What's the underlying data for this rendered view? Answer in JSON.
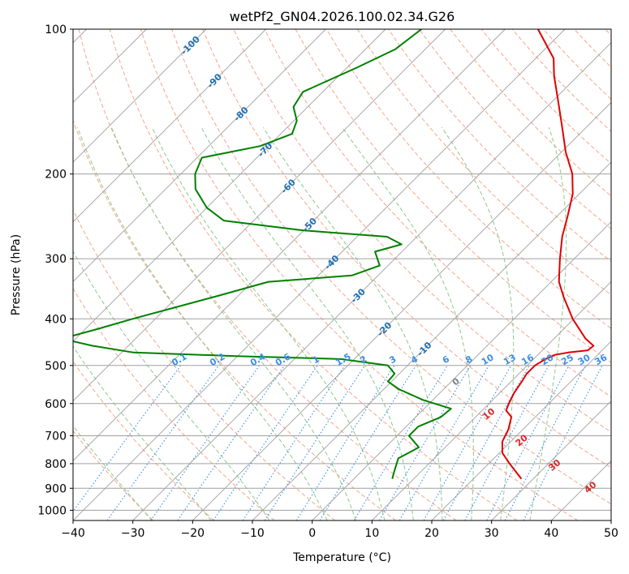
{
  "chart_data": {
    "type": "line",
    "subtype": "skew-t log-p diagram",
    "title": "wetPf2_GN04.2026.100.02.34.G26",
    "xlabel": "Temperature (°C)",
    "ylabel": "Pressure (hPa)",
    "xlim": [
      -40,
      50
    ],
    "ylim": [
      1050,
      100
    ],
    "yscale": "log",
    "grid": true,
    "x_ticks": [
      -40,
      -30,
      -20,
      -10,
      0,
      10,
      20,
      30,
      40,
      50
    ],
    "y_ticks": [
      100,
      200,
      300,
      400,
      500,
      600,
      700,
      800,
      900,
      1000
    ],
    "x_tick_labels": [
      "−40",
      "−30",
      "−20",
      "−10",
      "0",
      "10",
      "20",
      "30",
      "40",
      "50"
    ],
    "y_tick_labels": [
      "100",
      "200",
      "300",
      "400",
      "500",
      "600",
      "700",
      "800",
      "900",
      "1000"
    ],
    "series": [
      {
        "color": "#e00000",
        "points": [
          [
            860,
            28.0
          ],
          [
            800,
            23.5
          ],
          [
            760,
            20.5
          ],
          [
            720,
            18.6
          ],
          [
            680,
            17.6
          ],
          [
            640,
            16.0
          ],
          [
            620,
            14.0
          ],
          [
            600,
            13.3
          ],
          [
            570,
            12.4
          ],
          [
            540,
            11.8
          ],
          [
            520,
            11.3
          ],
          [
            500,
            11.3
          ],
          [
            485,
            12.0
          ],
          [
            475,
            12.9
          ],
          [
            470,
            14.7
          ],
          [
            465,
            17.6
          ],
          [
            455,
            17.8
          ],
          [
            440,
            15.3
          ],
          [
            400,
            9.8
          ],
          [
            360,
            4.6
          ],
          [
            335,
            1.3
          ],
          [
            300,
            -2.4
          ],
          [
            270,
            -5.7
          ],
          [
            245,
            -8.2
          ],
          [
            220,
            -11.1
          ],
          [
            200,
            -14.5
          ],
          [
            180,
            -19.3
          ],
          [
            160,
            -24.0
          ],
          [
            140,
            -29.4
          ],
          [
            125,
            -34.0
          ],
          [
            115,
            -37.0
          ],
          [
            100,
            -44.5
          ]
        ]
      },
      {
        "color": "#008000",
        "points": [
          [
            860,
            6.4
          ],
          [
            830,
            5.5
          ],
          [
            780,
            4.0
          ],
          [
            740,
            5.6
          ],
          [
            700,
            2.0
          ],
          [
            670,
            2.0
          ],
          [
            640,
            4.2
          ],
          [
            615,
            4.5
          ],
          [
            590,
            -1.6
          ],
          [
            560,
            -7.5
          ],
          [
            540,
            -10.6
          ],
          [
            520,
            -10.8
          ],
          [
            500,
            -13.3
          ],
          [
            485,
            -22.2
          ],
          [
            478,
            -40.3
          ],
          [
            470,
            -58.0
          ],
          [
            455,
            -66.0
          ],
          [
            440,
            -72.3
          ],
          [
            420,
            -68.0
          ],
          [
            400,
            -63.8
          ],
          [
            360,
            -53.8
          ],
          [
            335,
            -47.3
          ],
          [
            325,
            -34.4
          ],
          [
            310,
            -31.4
          ],
          [
            290,
            -34.5
          ],
          [
            280,
            -31.3
          ],
          [
            270,
            -35.0
          ],
          [
            262,
            -50.0
          ],
          [
            250,
            -65.0
          ],
          [
            235,
            -70.0
          ],
          [
            215,
            -75.0
          ],
          [
            200,
            -77.6
          ],
          [
            185,
            -79.2
          ],
          [
            175,
            -71.4
          ],
          [
            165,
            -68.1
          ],
          [
            155,
            -69.5
          ],
          [
            145,
            -72.4
          ],
          [
            135,
            -73.3
          ],
          [
            120,
            -68.3
          ],
          [
            110,
            -65.0
          ],
          [
            100,
            -64.0
          ]
        ]
      }
    ],
    "dry_adiabats": [
      -30,
      -20,
      -10,
      0,
      10,
      20,
      30,
      40,
      50,
      60,
      70,
      80,
      90,
      100,
      110,
      120,
      130,
      140,
      150,
      160,
      170,
      180,
      190,
      200
    ],
    "moist_adiabats": [
      -30,
      -20,
      -10,
      0,
      5,
      10,
      15,
      20,
      25,
      30,
      35
    ],
    "mixing_ratio_lines": [
      "0.1",
      "0.2",
      "0.4",
      "0.6",
      "1",
      "1.5",
      "2",
      "3",
      "4",
      "6",
      "8",
      "10",
      "13",
      "16",
      "20",
      "25",
      "30",
      "36"
    ],
    "isotherm_labels": [
      "-100",
      "-90",
      "-80",
      "-70",
      "-60",
      "-50",
      "-40",
      "-30",
      "-20",
      "-10"
    ],
    "theta_labels": [
      "0",
      "10",
      "20",
      "30",
      "40"
    ]
  },
  "colors": {
    "temperature": "#e00000",
    "dewpoint": "#008000",
    "isotherm": "#a0a0a0",
    "dry_adiabat": "#f7a58a",
    "moist_adiabat": "#8cc98c",
    "mixing_ratio": "#3a8ee6",
    "isotherm_label": "#1f6fb0",
    "theta_label": "#d62728"
  }
}
